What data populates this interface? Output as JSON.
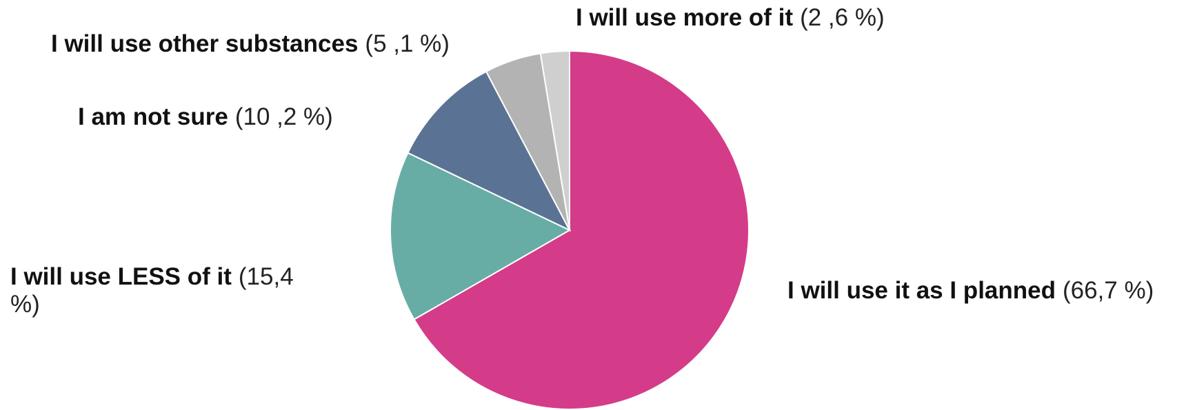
{
  "chart_data": {
    "type": "pie",
    "slices": [
      {
        "category": "I will use it as I planned",
        "value": 66.7,
        "label_value": "(66,7 %)",
        "color": "#d43c8a"
      },
      {
        "category": "I will use LESS of it",
        "value": 15.4,
        "label_value": "(15,4 %)",
        "color": "#68ada5"
      },
      {
        "category": "I am not sure",
        "value": 10.2,
        "label_value": "(10 ,2 %)",
        "color": "#5a7394"
      },
      {
        "category": "I will use other substances",
        "value": 5.1,
        "label_value": "(5 ,1 %)",
        "color": "#b3b3b3"
      },
      {
        "category": "I will use more of it",
        "value": 2.6,
        "label_value": "(2 ,6  %)",
        "color": "#cfcfcf"
      }
    ],
    "start": "12 o'clock",
    "direction": "clockwise",
    "legend": "none",
    "title": ""
  }
}
